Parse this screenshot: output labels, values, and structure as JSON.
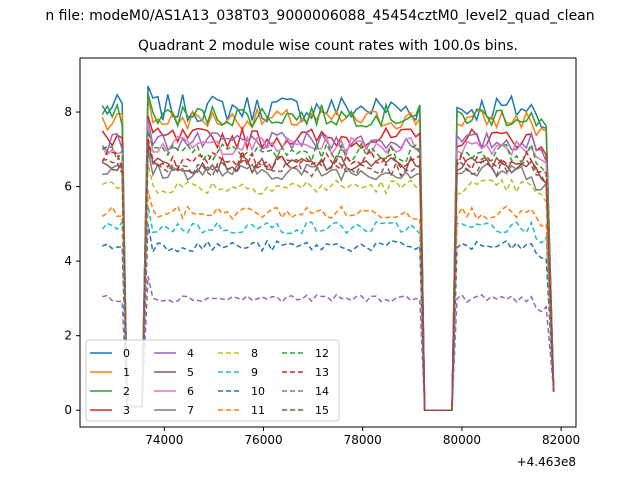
{
  "figure": {
    "suptitle": "n file: modeM0/AS1A13_038T03_9000006088_45454cztM0_level2_quad_clean",
    "x_offset_label": "+4.463e8"
  },
  "chart_data": {
    "type": "line",
    "title": "Quadrant 2 module wise count rates with 100.0s bins.",
    "xlabel": "",
    "ylabel": "",
    "xlim": [
      72300,
      82300
    ],
    "ylim": [
      -0.45,
      9.45
    ],
    "x_ticks": [
      74000,
      76000,
      78000,
      80000,
      82000
    ],
    "x_tick_labels": [
      "74000",
      "76000",
      "78000",
      "80000",
      "82000"
    ],
    "y_ticks": [
      0,
      2,
      4,
      6,
      8
    ],
    "y_tick_labels": [
      "0",
      "2",
      "4",
      "6",
      "8"
    ],
    "x_offset": 446300000,
    "legend": {
      "placement": "lower-left",
      "columns": 4
    },
    "grid": false,
    "segments": [
      {
        "x_start": 72750,
        "x_end": 73150,
        "gap_to": 73670
      },
      {
        "x_start": 73670,
        "x_end": 79150,
        "gap_to": 79900
      },
      {
        "x_start": 79900,
        "x_end": 81850,
        "gap_to": null
      }
    ],
    "x_samples": [
      72750,
      72850,
      72950,
      73050,
      73150,
      73250,
      73350,
      73450,
      73550,
      73670,
      73770,
      73870,
      73970,
      74070,
      74170,
      74270,
      74370,
      74470,
      74570,
      74670,
      74770,
      74870,
      74970,
      75070,
      75170,
      75270,
      75370,
      75470,
      75570,
      75670,
      75770,
      75870,
      75970,
      76070,
      76170,
      76270,
      76370,
      76470,
      76570,
      76670,
      76770,
      76870,
      76970,
      77070,
      77170,
      77270,
      77370,
      77470,
      77570,
      77670,
      77770,
      77870,
      77970,
      78070,
      78170,
      78270,
      78370,
      78470,
      78570,
      78670,
      78770,
      78870,
      78970,
      79070,
      79150,
      79250,
      79350,
      79500,
      79650,
      79800,
      79900,
      80000,
      80100,
      80200,
      80300,
      80400,
      80500,
      80600,
      80700,
      80800,
      80900,
      81000,
      81100,
      81200,
      81300,
      81400,
      81500,
      81600,
      81700,
      81850
    ],
    "dip_x": [
      73250,
      73350,
      73450,
      73550,
      79250,
      79350,
      79500,
      79650,
      79800
    ],
    "series": [
      {
        "name": "0",
        "color": "#1f77b4",
        "dashed": false,
        "level": 8.1,
        "edge": 0.75
      },
      {
        "name": "1",
        "color": "#ff7f0e",
        "dashed": false,
        "level": 7.8,
        "edge": 0.55
      },
      {
        "name": "2",
        "color": "#2ca02c",
        "dashed": false,
        "level": 7.9,
        "edge": 0.6
      },
      {
        "name": "3",
        "color": "#d62728",
        "dashed": false,
        "level": 7.3,
        "edge": 0.55
      },
      {
        "name": "4",
        "color": "#9467bd",
        "dashed": false,
        "level": 7.2,
        "edge": 0.5
      },
      {
        "name": "5",
        "color": "#8c564b",
        "dashed": false,
        "level": 6.6,
        "edge": 0.45
      },
      {
        "name": "6",
        "color": "#e377c2",
        "dashed": false,
        "level": 7.1,
        "edge": 0.5
      },
      {
        "name": "7",
        "color": "#7f7f7f",
        "dashed": false,
        "level": 6.4,
        "edge": 0.45
      },
      {
        "name": "8",
        "color": "#bcbd22",
        "dashed": true,
        "level": 6.0,
        "edge": 0.4
      },
      {
        "name": "9",
        "color": "#17becf",
        "dashed": true,
        "level": 4.9,
        "edge": 0.35
      },
      {
        "name": "10",
        "color": "#1f77b4",
        "dashed": true,
        "level": 4.4,
        "edge": 0.3
      },
      {
        "name": "11",
        "color": "#ff7f0e",
        "dashed": true,
        "level": 5.3,
        "edge": 0.35
      },
      {
        "name": "12",
        "color": "#2ca02c",
        "dashed": true,
        "level": 6.9,
        "edge": 0.5
      },
      {
        "name": "13",
        "color": "#d62728",
        "dashed": true,
        "level": 6.7,
        "edge": 0.5
      },
      {
        "name": "14",
        "color": "#9467bd",
        "dashed": true,
        "level": 3.0,
        "edge": 0.2
      },
      {
        "name": "15",
        "color": "#8c564b",
        "dashed": true,
        "level": 6.5,
        "edge": 0.45
      }
    ]
  }
}
